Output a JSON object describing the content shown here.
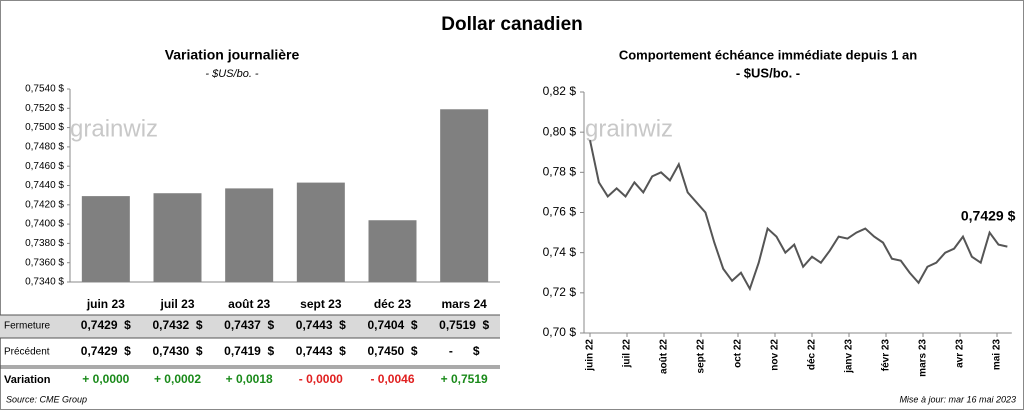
{
  "title": "Dollar canadien",
  "logo": "grainwiz",
  "chart_data": [
    {
      "type": "bar",
      "title": "Variation  journalière",
      "subtitle": "- $US/bo. -",
      "color": "#808080",
      "categories": [
        "juin 23",
        "juil 23",
        "août 23",
        "sept 23",
        "déc 23",
        "mars 24"
      ],
      "values": [
        0.7429,
        0.7432,
        0.7437,
        0.7443,
        0.7404,
        0.7519
      ],
      "ylim": [
        0.734,
        0.754
      ],
      "yticks": [
        {
          "value": 0.734,
          "label": "0,7340 $"
        },
        {
          "value": 0.736,
          "label": "0,7360 $"
        },
        {
          "value": 0.738,
          "label": "0,7380 $"
        },
        {
          "value": 0.74,
          "label": "0,7400 $"
        },
        {
          "value": 0.742,
          "label": "0,7420 $"
        },
        {
          "value": 0.744,
          "label": "0,7440 $"
        },
        {
          "value": 0.746,
          "label": "0,7460 $"
        },
        {
          "value": 0.748,
          "label": "0,7480 $"
        },
        {
          "value": 0.75,
          "label": "0,7500 $"
        },
        {
          "value": 0.752,
          "label": "0,7520 $"
        },
        {
          "value": 0.754,
          "label": "0,7540 $"
        }
      ]
    },
    {
      "type": "line",
      "title": "Comportement échéance immédiate depuis 1 an",
      "subtitle": "- $US/bo. -",
      "color": "#555555",
      "annotation": "0,7429 $",
      "x": [
        0,
        0.24,
        0.48,
        0.72,
        0.96,
        1.2,
        1.44,
        1.68,
        1.92,
        2.16,
        2.4,
        2.64,
        2.88,
        3.12,
        3.36,
        3.6,
        3.84,
        4.08,
        4.32,
        4.56,
        4.8,
        5.04,
        5.28,
        5.52,
        5.76,
        6,
        6.24,
        6.48,
        6.72,
        6.96,
        7.2,
        7.44,
        7.68,
        7.92,
        8.16,
        8.4,
        8.64,
        8.88,
        9.12,
        9.36,
        9.6,
        9.84,
        10.08,
        10.32,
        10.56,
        10.8,
        11.04,
        11.28
      ],
      "values": [
        0.796,
        0.775,
        0.768,
        0.772,
        0.768,
        0.775,
        0.77,
        0.778,
        0.78,
        0.776,
        0.784,
        0.77,
        0.765,
        0.76,
        0.745,
        0.732,
        0.726,
        0.73,
        0.722,
        0.735,
        0.752,
        0.748,
        0.74,
        0.744,
        0.733,
        0.738,
        0.735,
        0.741,
        0.748,
        0.747,
        0.75,
        0.752,
        0.748,
        0.745,
        0.737,
        0.736,
        0.73,
        0.725,
        0.733,
        0.735,
        0.74,
        0.742,
        0.748,
        0.738,
        0.735,
        0.75,
        0.744,
        0.743
      ],
      "xlim": [
        0,
        11.4
      ],
      "xticks": [
        {
          "value": 0,
          "label": "juin 22"
        },
        {
          "value": 1,
          "label": "juil 22"
        },
        {
          "value": 2,
          "label": "août 22"
        },
        {
          "value": 3,
          "label": "sept 22"
        },
        {
          "value": 4,
          "label": "oct 22"
        },
        {
          "value": 5,
          "label": "nov 22"
        },
        {
          "value": 6,
          "label": "déc 22"
        },
        {
          "value": 7,
          "label": "janv 23"
        },
        {
          "value": 8,
          "label": "févr 23"
        },
        {
          "value": 9,
          "label": "mars 23"
        },
        {
          "value": 10,
          "label": "avr 23"
        },
        {
          "value": 11,
          "label": "mai 23"
        }
      ],
      "ylim": [
        0.7,
        0.82
      ],
      "yticks": [
        {
          "value": 0.7,
          "label": "0,70 $"
        },
        {
          "value": 0.72,
          "label": "0,72 $"
        },
        {
          "value": 0.74,
          "label": "0,74 $"
        },
        {
          "value": 0.76,
          "label": "0,76 $"
        },
        {
          "value": 0.78,
          "label": "0,78 $"
        },
        {
          "value": 0.8,
          "label": "0,80 $"
        },
        {
          "value": 0.82,
          "label": "0,82 $"
        }
      ]
    }
  ],
  "table": {
    "rows": [
      {
        "label": "Fermeture",
        "cells": [
          "0,7429  $",
          "0,7432  $",
          "0,7437  $",
          "0,7443  $",
          "0,7404  $",
          "0,7519  $"
        ]
      },
      {
        "label": "Précédent",
        "cells": [
          "0,7429  $",
          "0,7430  $",
          "0,7419  $",
          "0,7443  $",
          "0,7450  $",
          "-      $"
        ]
      },
      {
        "label": "Variation",
        "cells": [
          "+ 0,0000",
          "+ 0,0002",
          "+ 0,0018",
          "- 0,0000",
          "- 0,0046",
          "+ 0,7519"
        ],
        "colors": [
          "#1a8a1a",
          "#1a8a1a",
          "#1a8a1a",
          "#e02020",
          "#e02020",
          "#1a8a1a"
        ]
      }
    ]
  },
  "source": "Source: CME Group",
  "updated": "Mise à jour: mar 16 mai 2023"
}
